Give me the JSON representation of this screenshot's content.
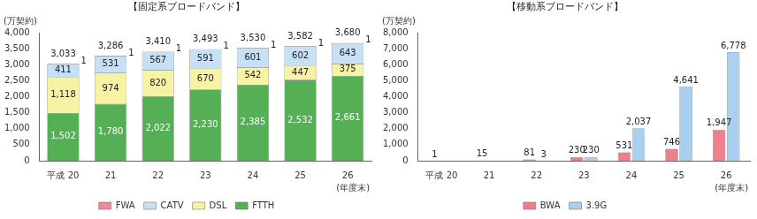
{
  "chart_data": [
    {
      "type": "bar",
      "title": "【固定系ブロードバンド】",
      "ylabel": "(万契約)",
      "xlabel": "(年度末)",
      "categories": [
        "平成 20",
        "21",
        "22",
        "23",
        "24",
        "25",
        "26"
      ],
      "series": [
        {
          "name": "FTTH",
          "color": "#55b055",
          "values": [
            1502,
            1780,
            2022,
            2230,
            2385,
            2532,
            2661
          ],
          "value_labels": [
            "1,502",
            "1,780",
            "2,022",
            "2,230",
            "2,385",
            "2,532",
            "2,661"
          ]
        },
        {
          "name": "DSL",
          "color": "#f8f2a4",
          "values": [
            1118,
            974,
            820,
            670,
            542,
            447,
            375
          ],
          "value_labels": [
            "1,118",
            "974",
            "820",
            "670",
            "542",
            "447",
            "375"
          ]
        },
        {
          "name": "CATV",
          "color": "#c6e0f5",
          "values": [
            411,
            531,
            567,
            591,
            601,
            602,
            643
          ]
        },
        {
          "name": "FWA",
          "color": "#f08a98",
          "values": [
            1,
            1,
            1,
            1,
            1,
            1,
            1
          ]
        }
      ],
      "totals": [
        3033,
        3286,
        3410,
        3493,
        3530,
        3582,
        3680
      ],
      "total_labels": [
        "3,033",
        "3,286",
        "3,410",
        "3,493",
        "3,530",
        "3,582",
        "3,680"
      ],
      "ylim": [
        0,
        4000
      ],
      "yticks": [
        0,
        500,
        {
          "value": 1000,
          "label": "1,000"
        },
        {
          "value": 1500,
          "label": "1,500"
        },
        {
          "value": 2000,
          "label": "2,000"
        },
        {
          "value": 2500,
          "label": "2,500"
        },
        {
          "value": 3000,
          "label": "3,000"
        },
        {
          "value": 3500,
          "label": "3,500"
        },
        {
          "value": 4000,
          "label": "4,000"
        }
      ],
      "stacked": true,
      "data_labels": true,
      "legend": "bottom",
      "grid": false
    },
    {
      "type": "bar",
      "title": "【移動系ブロードバンド】",
      "ylabel": "(万契約)",
      "xlabel": "(年度末)",
      "categories": [
        "平成 20",
        "21",
        "22",
        "23",
        "24",
        "25",
        "26"
      ],
      "series": [
        {
          "name": "BWA",
          "color": "#f07f8c",
          "values": [
            1,
            15,
            81,
            230,
            531,
            746,
            1947
          ],
          "value_labels": [
            "1",
            "15",
            "81",
            "230",
            "531",
            "746",
            "1,947"
          ]
        },
        {
          "name": "3.9G",
          "color": "#a9d0f0",
          "values": [
            null,
            null,
            3,
            230,
            2037,
            4641,
            6778
          ],
          "value_labels": [
            null,
            null,
            "3",
            "230",
            "2,037",
            "4,641",
            "6,778"
          ]
        }
      ],
      "ylim": [
        0,
        8000
      ],
      "yticks": [
        0,
        {
          "value": 1000,
          "label": "1,000"
        },
        {
          "value": 2000,
          "label": "2,000"
        },
        {
          "value": 3000,
          "label": "3,000"
        },
        {
          "value": 4000,
          "label": "4,000"
        },
        {
          "value": 5000,
          "label": "5,000"
        },
        {
          "value": 6000,
          "label": "6,000"
        },
        {
          "value": 7000,
          "label": "7,000"
        },
        {
          "value": 8000,
          "label": "8,000"
        }
      ],
      "stacked": false,
      "data_labels": true,
      "legend": "bottom",
      "grid": false
    }
  ]
}
